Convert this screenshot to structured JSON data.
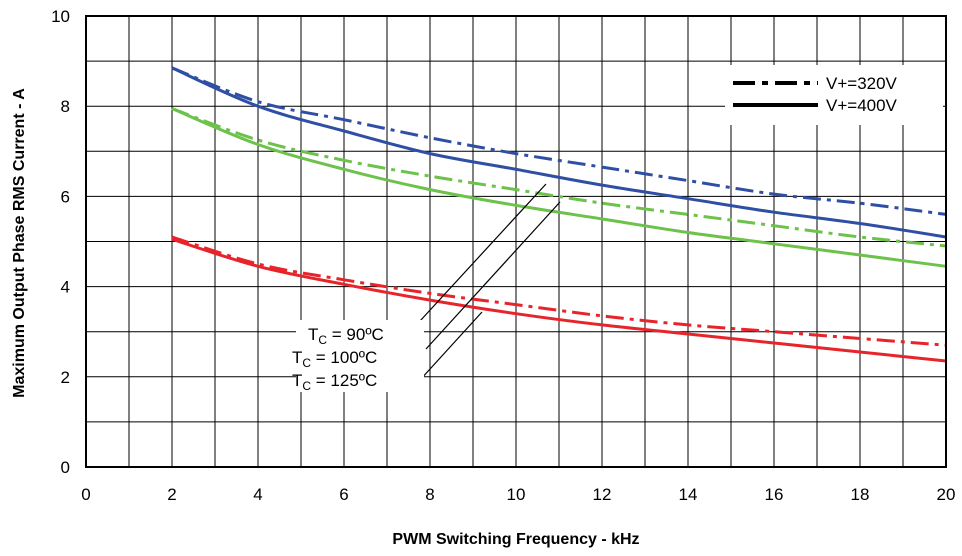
{
  "chart_data": {
    "type": "line",
    "xlabel": "PWM Switching Frequency - kHz",
    "ylabel": "Maximum Output Phase RMS Current - A",
    "xlim": [
      0,
      20
    ],
    "ylim": [
      0,
      10
    ],
    "x_ticks": [
      "0",
      "2",
      "4",
      "6",
      "8",
      "10",
      "12",
      "14",
      "16",
      "18",
      "20"
    ],
    "y_ticks": [
      "0",
      "2",
      "4",
      "6",
      "8",
      "10"
    ],
    "grid": true,
    "legend_position": "top-right",
    "legend": [
      {
        "label": "V+=320V",
        "style": "dash-dot"
      },
      {
        "label": "V+=400V",
        "style": "solid"
      }
    ],
    "annotations": [
      {
        "sub_base": "T",
        "sub": "C",
        "rest": " = 90ºC"
      },
      {
        "sub_base": "T",
        "sub": "C",
        "rest": " = 100ºC"
      },
      {
        "sub_base": "T",
        "sub": "C",
        "rest": " = 125ºC"
      }
    ],
    "colors": {
      "tc90": "#2E4FA3",
      "tc100": "#6CC24A",
      "tc125": "#E8242B"
    },
    "x": [
      2,
      4,
      6,
      8,
      10,
      12,
      14,
      16,
      18,
      20
    ],
    "series": [
      {
        "group": "tc90",
        "style": "solid",
        "values": [
          8.85,
          8.0,
          7.45,
          6.95,
          6.6,
          6.25,
          5.95,
          5.65,
          5.4,
          5.1
        ]
      },
      {
        "group": "tc90",
        "style": "dash-dot",
        "values": [
          8.85,
          8.1,
          7.7,
          7.3,
          6.95,
          6.65,
          6.35,
          6.05,
          5.85,
          5.6
        ]
      },
      {
        "group": "tc100",
        "style": "solid",
        "values": [
          7.95,
          7.15,
          6.6,
          6.15,
          5.8,
          5.5,
          5.2,
          4.95,
          4.7,
          4.45
        ]
      },
      {
        "group": "tc100",
        "style": "dash-dot",
        "values": [
          7.95,
          7.25,
          6.8,
          6.45,
          6.15,
          5.85,
          5.6,
          5.35,
          5.1,
          4.9
        ]
      },
      {
        "group": "tc125",
        "style": "solid",
        "values": [
          5.05,
          4.45,
          4.05,
          3.7,
          3.4,
          3.15,
          2.95,
          2.75,
          2.55,
          2.35
        ]
      },
      {
        "group": "tc125",
        "style": "dash-dot",
        "values": [
          5.1,
          4.5,
          4.15,
          3.85,
          3.6,
          3.35,
          3.15,
          3.0,
          2.85,
          2.7
        ]
      }
    ]
  }
}
